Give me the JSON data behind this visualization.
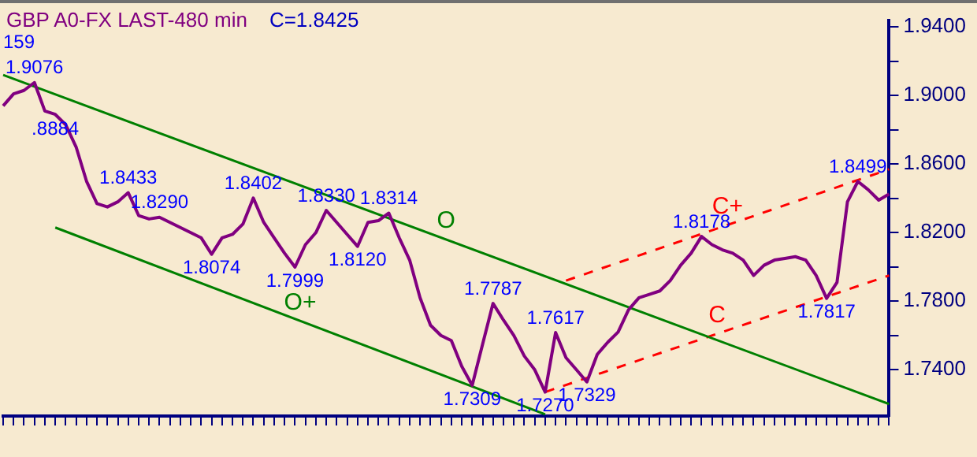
{
  "chart_data": {
    "type": "line",
    "title": "GBP A0-FX LAST-480 min",
    "subtitle": "C=1.8425",
    "categories": [
      null,
      null,
      null,
      null,
      null,
      null,
      null,
      null,
      null,
      null,
      null,
      null,
      null,
      null,
      null,
      null,
      null,
      null,
      null,
      null,
      null,
      null,
      null,
      null,
      null,
      null,
      null,
      null,
      null,
      null,
      null,
      null,
      null,
      null,
      null,
      null,
      null,
      null,
      null,
      null,
      null,
      null,
      null,
      null,
      null,
      null,
      null,
      null,
      null,
      null,
      null,
      null,
      null,
      null,
      null,
      null,
      null,
      null,
      null,
      null,
      null,
      null,
      null,
      null,
      null,
      null,
      null,
      null,
      null,
      null,
      null,
      null,
      null,
      null,
      null,
      null,
      null,
      null,
      null,
      null,
      null,
      null,
      null,
      null,
      null,
      null
    ],
    "series": [
      {
        "color": "#800080",
        "line_style": "solid",
        "values": [
          1.894,
          1.901,
          1.903,
          1.9076,
          1.891,
          1.889,
          1.883,
          1.87,
          1.85,
          1.837,
          1.835,
          1.838,
          1.8433,
          1.83,
          1.828,
          1.829,
          1.826,
          1.823,
          1.82,
          1.817,
          1.8074,
          1.817,
          1.819,
          1.825,
          1.8402,
          1.826,
          1.817,
          1.808,
          1.7999,
          1.813,
          1.82,
          1.833,
          1.826,
          1.819,
          1.812,
          1.826,
          1.827,
          1.8314,
          1.817,
          1.804,
          1.782,
          1.766,
          1.76,
          1.757,
          1.742,
          1.7309,
          1.755,
          1.7787,
          1.769,
          1.76,
          1.748,
          1.74,
          1.727,
          1.7617,
          1.747,
          1.74,
          1.7329,
          1.749,
          1.756,
          1.762,
          1.775,
          1.782,
          1.784,
          1.786,
          1.792,
          1.801,
          1.808,
          1.8178,
          1.813,
          1.81,
          1.808,
          1.804,
          1.795,
          1.801,
          1.804,
          1.805,
          1.806,
          1.804,
          1.795,
          1.7817,
          1.791,
          1.838,
          1.8499,
          1.845,
          1.839,
          1.8425
        ]
      },
      {
        "name": "O",
        "color": "#008000",
        "line_style": "solid",
        "values": [
          1.912,
          null,
          null,
          null,
          null,
          null,
          null,
          null,
          null,
          null,
          null,
          null,
          null,
          null,
          null,
          null,
          null,
          null,
          null,
          null,
          null,
          null,
          null,
          null,
          null,
          null,
          null,
          null,
          null,
          null,
          null,
          null,
          null,
          null,
          null,
          null,
          null,
          null,
          null,
          null,
          null,
          null,
          null,
          null,
          null,
          null,
          null,
          null,
          null,
          null,
          null,
          null,
          null,
          null,
          null,
          null,
          null,
          null,
          null,
          null,
          null,
          null,
          null,
          null,
          null,
          null,
          null,
          null,
          null,
          null,
          null,
          null,
          null,
          null,
          null,
          null,
          null,
          null,
          null,
          null,
          null,
          null,
          null,
          null,
          null,
          1.72
        ]
      },
      {
        "name": "O+",
        "color": "#008000",
        "line_style": "solid",
        "values": [
          null,
          null,
          null,
          null,
          null,
          1.823,
          null,
          null,
          null,
          null,
          null,
          null,
          null,
          null,
          null,
          null,
          null,
          null,
          null,
          null,
          null,
          null,
          null,
          null,
          null,
          null,
          null,
          null,
          null,
          null,
          null,
          null,
          null,
          null,
          null,
          null,
          null,
          null,
          null,
          null,
          null,
          null,
          null,
          null,
          null,
          null,
          null,
          null,
          null,
          null,
          null,
          null,
          1.714,
          null,
          null,
          null,
          null,
          null,
          null,
          null,
          null,
          null,
          null,
          null,
          null,
          null,
          null,
          null,
          null,
          null,
          null,
          null,
          null,
          null,
          null,
          null,
          null,
          null,
          null,
          null,
          null,
          null,
          null,
          null,
          null,
          null
        ]
      },
      {
        "name": "C+",
        "color": "#ff0000",
        "line_style": "dashed",
        "values": [
          null,
          null,
          null,
          null,
          null,
          null,
          null,
          null,
          null,
          null,
          null,
          null,
          null,
          null,
          null,
          null,
          null,
          null,
          null,
          null,
          null,
          null,
          null,
          null,
          null,
          null,
          null,
          null,
          null,
          null,
          null,
          null,
          null,
          null,
          null,
          null,
          null,
          null,
          null,
          null,
          null,
          null,
          null,
          null,
          null,
          null,
          null,
          null,
          null,
          null,
          null,
          null,
          null,
          null,
          1.792,
          null,
          null,
          null,
          null,
          null,
          null,
          null,
          null,
          null,
          null,
          null,
          null,
          null,
          null,
          null,
          null,
          null,
          null,
          null,
          null,
          null,
          null,
          null,
          null,
          null,
          null,
          null,
          null,
          null,
          null,
          1.857
        ]
      },
      {
        "name": "C",
        "color": "#ff0000",
        "line_style": "dashed",
        "values": [
          null,
          null,
          null,
          null,
          null,
          null,
          null,
          null,
          null,
          null,
          null,
          null,
          null,
          null,
          null,
          null,
          null,
          null,
          null,
          null,
          null,
          null,
          null,
          null,
          null,
          null,
          null,
          null,
          null,
          null,
          null,
          null,
          null,
          null,
          null,
          null,
          null,
          null,
          null,
          null,
          null,
          null,
          null,
          null,
          null,
          null,
          null,
          null,
          null,
          null,
          null,
          null,
          1.727,
          null,
          null,
          null,
          null,
          null,
          null,
          null,
          null,
          null,
          null,
          null,
          null,
          null,
          null,
          null,
          null,
          null,
          null,
          null,
          null,
          null,
          null,
          null,
          null,
          null,
          null,
          null,
          null,
          null,
          null,
          null,
          null,
          1.795
        ]
      }
    ],
    "annotations": [
      "159",
      {
        "text": ".8884",
        "y": 1.8884
      },
      {
        "text": "1.9076",
        "y": 1.9076
      },
      {
        "text": "1.8433",
        "y": 1.8433
      },
      {
        "text": "1.8290",
        "y": 1.829
      },
      {
        "text": "1.8074",
        "y": 1.8074
      },
      {
        "text": "1.8402",
        "y": 1.8402
      },
      {
        "text": "1.7999",
        "y": 1.7999
      },
      {
        "text": "1.8330",
        "y": 1.833
      },
      {
        "text": "1.8120",
        "y": 1.812
      },
      {
        "text": "1.8314",
        "y": 1.8314
      },
      {
        "text": "1.7309",
        "y": 1.7309
      },
      {
        "text": "1.7787",
        "y": 1.7787
      },
      {
        "text": "1.7270",
        "y": 1.727
      },
      {
        "text": "1.7617",
        "y": 1.7617
      },
      {
        "text": "1.7329",
        "y": 1.7329
      },
      {
        "text": "1.8178",
        "y": 1.8178
      },
      {
        "text": "1.7817",
        "y": 1.7817
      },
      {
        "text": "1.8499",
        "y": 1.8499
      }
    ],
    "ylim": [
      1.713,
      1.944
    ],
    "yticks": [
      {
        "value": 1.74,
        "label": "1.7400"
      },
      {
        "value": 1.76,
        "label": null
      },
      {
        "value": 1.78,
        "label": "1.7800"
      },
      {
        "value": 1.8,
        "label": null
      },
      {
        "value": 1.82,
        "label": "1.8200"
      },
      {
        "value": 1.84,
        "label": null
      },
      {
        "value": 1.86,
        "label": "1.8600"
      },
      {
        "value": 1.88,
        "label": null
      },
      {
        "value": 1.9,
        "label": "1.9000"
      },
      {
        "value": 1.92,
        "label": null
      },
      {
        "value": 1.94,
        "label": "1.9400"
      }
    ],
    "tick_labels": "y",
    "grid": false,
    "legend": false,
    "marker": "none"
  }
}
